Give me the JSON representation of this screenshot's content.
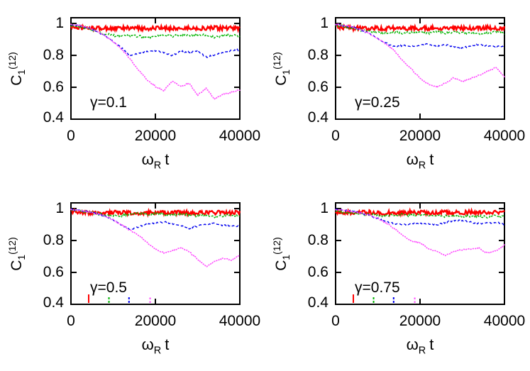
{
  "figure": {
    "background": "#ffffff",
    "text_color": "#000000",
    "grid": "2x2 panels"
  },
  "chart_data": [
    {
      "type": "line",
      "panel": "top-left",
      "gamma_label": "γ=0.1",
      "xlabel": "ω_R t",
      "ylabel": "C_1^(12)",
      "xlabel_parts": {
        "base": "ω",
        "sub": "R",
        "rest": "t"
      },
      "ylabel_parts": {
        "base": "C",
        "sub": "1",
        "sup": "(12)"
      },
      "xlim": [
        0,
        40000
      ],
      "ylim": [
        0.4,
        1.036
      ],
      "x_ticks": [
        0,
        20000,
        40000
      ],
      "y_ticks": [
        0.4,
        0.6,
        0.8,
        1
      ],
      "x_tick_labels": [
        "0",
        "20000",
        "40000"
      ],
      "y_tick_labels": [
        "1",
        "0.8",
        "0.6",
        "0.4"
      ],
      "grid": false,
      "legend": "none",
      "x_keypoints": [
        0,
        2000,
        4000,
        6000,
        8000,
        10000,
        12000,
        14000,
        16000,
        18000,
        20000,
        22000,
        24000,
        26000,
        28000,
        30000,
        32000,
        34000,
        36000,
        38000,
        40000
      ],
      "series": [
        {
          "name": "red-solid",
          "color": "#ff0000",
          "dash": "solid",
          "width": 2.4,
          "noise": 0.013,
          "y": [
            0.98,
            0.973,
            0.971,
            0.97,
            0.97,
            0.969,
            0.97,
            0.971,
            0.97,
            0.969,
            0.97,
            0.97,
            0.971,
            0.969,
            0.97,
            0.97,
            0.969,
            0.971,
            0.97,
            0.97,
            0.97
          ]
        },
        {
          "name": "green-short-dash",
          "color": "#00b400",
          "dash": "dashed-short",
          "width": 1.4,
          "noise": 0.008,
          "y": [
            0.99,
            0.98,
            0.97,
            0.952,
            0.935,
            0.924,
            0.919,
            0.924,
            0.92,
            0.914,
            0.921,
            0.926,
            0.919,
            0.93,
            0.924,
            0.931,
            0.924,
            0.914,
            0.921,
            0.926,
            0.918
          ]
        },
        {
          "name": "blue-dash",
          "color": "#0000ee",
          "dash": "dashed",
          "width": 1.4,
          "noise": 0.005,
          "y": [
            0.995,
            0.986,
            0.975,
            0.954,
            0.924,
            0.886,
            0.846,
            0.796,
            0.812,
            0.826,
            0.83,
            0.818,
            0.8,
            0.826,
            0.819,
            0.831,
            0.79,
            0.801,
            0.82,
            0.831,
            0.835
          ]
        },
        {
          "name": "magenta-dotted",
          "color": "#ff50ff",
          "dash": "dotted",
          "width": 1.7,
          "noise": 0.004,
          "y": [
            0.995,
            0.986,
            0.975,
            0.954,
            0.924,
            0.886,
            0.84,
            0.778,
            0.708,
            0.646,
            0.605,
            0.578,
            0.64,
            0.605,
            0.625,
            0.548,
            0.595,
            0.527,
            0.556,
            0.568,
            0.585
          ]
        }
      ],
      "event_ticks": []
    },
    {
      "type": "line",
      "panel": "top-right",
      "gamma_label": "γ=0.25",
      "xlabel": "ω_R t",
      "ylabel": "C_1^(12)",
      "xlabel_parts": {
        "base": "ω",
        "sub": "R",
        "rest": "t"
      },
      "ylabel_parts": {
        "base": "C",
        "sub": "1",
        "sup": "(12)"
      },
      "xlim": [
        0,
        40000
      ],
      "ylim": [
        0.4,
        1.036
      ],
      "x_ticks": [
        0,
        20000,
        40000
      ],
      "y_ticks": [
        0.4,
        0.6,
        0.8,
        1
      ],
      "x_tick_labels": [
        "0",
        "20000",
        "40000"
      ],
      "y_tick_labels": [
        "1",
        "0.8",
        "0.6",
        "0.4"
      ],
      "grid": false,
      "legend": "none",
      "x_keypoints": [
        0,
        2000,
        4000,
        6000,
        8000,
        10000,
        12000,
        14000,
        16000,
        18000,
        20000,
        22000,
        24000,
        26000,
        28000,
        30000,
        32000,
        34000,
        36000,
        38000,
        40000
      ],
      "series": [
        {
          "name": "red-solid",
          "color": "#ff0000",
          "dash": "solid",
          "width": 2.4,
          "noise": 0.013,
          "y": [
            0.982,
            0.974,
            0.971,
            0.97,
            0.97,
            0.97,
            0.969,
            0.971,
            0.97,
            0.97,
            0.969,
            0.97,
            0.971,
            0.97,
            0.969,
            0.97,
            0.97,
            0.971,
            0.974,
            0.97,
            0.97
          ]
        },
        {
          "name": "green-short-dash",
          "color": "#00b400",
          "dash": "dashed-short",
          "width": 1.4,
          "noise": 0.008,
          "y": [
            0.99,
            0.981,
            0.974,
            0.96,
            0.95,
            0.944,
            0.94,
            0.946,
            0.94,
            0.946,
            0.944,
            0.939,
            0.946,
            0.94,
            0.945,
            0.939,
            0.944,
            0.934,
            0.941,
            0.946,
            0.938
          ]
        },
        {
          "name": "blue-dash",
          "color": "#0000ee",
          "dash": "dashed",
          "width": 1.4,
          "noise": 0.005,
          "y": [
            0.995,
            0.986,
            0.976,
            0.96,
            0.936,
            0.906,
            0.876,
            0.856,
            0.861,
            0.856,
            0.866,
            0.871,
            0.856,
            0.866,
            0.856,
            0.846,
            0.861,
            0.866,
            0.861,
            0.856,
            0.854
          ]
        },
        {
          "name": "magenta-dotted",
          "color": "#ff50ff",
          "dash": "dotted",
          "width": 1.7,
          "noise": 0.004,
          "y": [
            0.995,
            0.986,
            0.976,
            0.96,
            0.936,
            0.906,
            0.87,
            0.828,
            0.764,
            0.714,
            0.655,
            0.62,
            0.6,
            0.626,
            0.66,
            0.634,
            0.656,
            0.676,
            0.7,
            0.726,
            0.664
          ]
        }
      ],
      "event_ticks": []
    },
    {
      "type": "line",
      "panel": "bottom-left",
      "gamma_label": "γ=0.5",
      "xlabel": "ω_R t",
      "ylabel": "C_1^(12)",
      "xlabel_parts": {
        "base": "ω",
        "sub": "R",
        "rest": "t"
      },
      "ylabel_parts": {
        "base": "C",
        "sub": "1",
        "sup": "(12)"
      },
      "xlim": [
        0,
        40000
      ],
      "ylim": [
        0.4,
        1.036
      ],
      "x_ticks": [
        0,
        20000,
        40000
      ],
      "y_ticks": [
        0.4,
        0.6,
        0.8,
        1
      ],
      "x_tick_labels": [
        "0",
        "20000",
        "40000"
      ],
      "y_tick_labels": [
        "1",
        "0.8",
        "0.6",
        "0.4"
      ],
      "grid": false,
      "legend": "none",
      "x_keypoints": [
        0,
        2000,
        4000,
        6000,
        8000,
        10000,
        12000,
        14000,
        16000,
        18000,
        20000,
        22000,
        24000,
        26000,
        28000,
        30000,
        32000,
        34000,
        36000,
        38000,
        40000
      ],
      "series": [
        {
          "name": "red-solid",
          "color": "#ff0000",
          "dash": "solid",
          "width": 2.4,
          "noise": 0.013,
          "y": [
            0.983,
            0.977,
            0.975,
            0.975,
            0.974,
            0.975,
            0.976,
            0.975,
            0.974,
            0.975,
            0.975,
            0.976,
            0.974,
            0.975,
            0.975,
            0.974,
            0.976,
            0.975,
            0.975,
            0.974,
            0.975
          ]
        },
        {
          "name": "green-short-dash",
          "color": "#00b400",
          "dash": "dashed-short",
          "width": 1.4,
          "noise": 0.008,
          "y": [
            0.99,
            0.984,
            0.977,
            0.969,
            0.961,
            0.955,
            0.956,
            0.966,
            0.97,
            0.964,
            0.97,
            0.965,
            0.96,
            0.966,
            0.96,
            0.955,
            0.961,
            0.95,
            0.956,
            0.961,
            0.956
          ]
        },
        {
          "name": "blue-dash",
          "color": "#0000ee",
          "dash": "dashed",
          "width": 1.4,
          "noise": 0.005,
          "y": [
            0.995,
            0.988,
            0.98,
            0.97,
            0.954,
            0.929,
            0.899,
            0.868,
            0.886,
            0.901,
            0.911,
            0.916,
            0.906,
            0.896,
            0.876,
            0.891,
            0.901,
            0.906,
            0.896,
            0.889,
            0.89
          ]
        },
        {
          "name": "magenta-dotted",
          "color": "#ff50ff",
          "dash": "dotted",
          "width": 1.7,
          "noise": 0.004,
          "y": [
            0.995,
            0.988,
            0.98,
            0.97,
            0.954,
            0.929,
            0.899,
            0.864,
            0.833,
            0.789,
            0.744,
            0.724,
            0.736,
            0.756,
            0.729,
            0.684,
            0.635,
            0.668,
            0.688,
            0.677,
            0.71
          ]
        }
      ],
      "event_ticks": [
        {
          "x": 4200,
          "len": 12,
          "color": "#ff0000",
          "dash": "solid"
        },
        {
          "x": 9000,
          "len": 10,
          "color": "#00b400",
          "dash": "dashed-short"
        },
        {
          "x": 13750,
          "len": 8,
          "color": "#0000ee",
          "dash": "dashed-short"
        },
        {
          "x": 18750,
          "len": 10,
          "color": "#ff50ff",
          "dash": "dotted-tick"
        }
      ]
    },
    {
      "type": "line",
      "panel": "bottom-right",
      "gamma_label": "γ=0.75",
      "xlabel": "ω_R t",
      "ylabel": "C_1^(12)",
      "xlabel_parts": {
        "base": "ω",
        "sub": "R",
        "rest": "t"
      },
      "ylabel_parts": {
        "base": "C",
        "sub": "1",
        "sup": "(12)"
      },
      "xlim": [
        0,
        40000
      ],
      "ylim": [
        0.4,
        1.036
      ],
      "x_ticks": [
        0,
        20000,
        40000
      ],
      "y_ticks": [
        0.4,
        0.6,
        0.8,
        1
      ],
      "x_tick_labels": [
        "0",
        "20000",
        "40000"
      ],
      "y_tick_labels": [
        "1",
        "0.8",
        "0.6",
        "0.4"
      ],
      "grid": false,
      "legend": "none",
      "x_keypoints": [
        0,
        2000,
        4000,
        6000,
        8000,
        10000,
        12000,
        14000,
        16000,
        18000,
        20000,
        22000,
        24000,
        26000,
        28000,
        30000,
        32000,
        34000,
        36000,
        38000,
        40000
      ],
      "series": [
        {
          "name": "red-solid",
          "color": "#ff0000",
          "dash": "solid",
          "width": 2.4,
          "noise": 0.013,
          "y": [
            0.983,
            0.977,
            0.975,
            0.975,
            0.977,
            0.975,
            0.974,
            0.975,
            0.976,
            0.977,
            0.975,
            0.974,
            0.977,
            0.975,
            0.974,
            0.975,
            0.977,
            0.975,
            0.974,
            0.975,
            0.979
          ]
        },
        {
          "name": "green-short-dash",
          "color": "#00b400",
          "dash": "dashed-short",
          "width": 1.4,
          "noise": 0.008,
          "y": [
            0.985,
            0.975,
            0.97,
            0.967,
            0.962,
            0.958,
            0.955,
            0.96,
            0.962,
            0.957,
            0.962,
            0.955,
            0.96,
            0.952,
            0.958,
            0.95,
            0.955,
            0.952,
            0.948,
            0.955,
            0.95
          ]
        },
        {
          "name": "blue-dash",
          "color": "#0000ee",
          "dash": "dashed",
          "width": 1.4,
          "noise": 0.005,
          "y": [
            0.995,
            0.99,
            0.982,
            0.972,
            0.958,
            0.938,
            0.916,
            0.905,
            0.9,
            0.905,
            0.91,
            0.905,
            0.896,
            0.914,
            0.924,
            0.924,
            0.915,
            0.905,
            0.91,
            0.915,
            0.9
          ]
        },
        {
          "name": "magenta-dotted",
          "color": "#ff50ff",
          "dash": "dotted",
          "width": 1.7,
          "noise": 0.004,
          "y": [
            0.995,
            0.99,
            0.982,
            0.972,
            0.958,
            0.938,
            0.91,
            0.874,
            0.83,
            0.796,
            0.786,
            0.746,
            0.731,
            0.706,
            0.731,
            0.741,
            0.746,
            0.751,
            0.721,
            0.736,
            0.772
          ]
        }
      ],
      "event_ticks": [
        {
          "x": 4200,
          "len": 12,
          "color": "#ff0000",
          "dash": "solid"
        },
        {
          "x": 9000,
          "len": 10,
          "color": "#00b400",
          "dash": "dashed-short"
        },
        {
          "x": 13750,
          "len": 8,
          "color": "#0000ee",
          "dash": "dashed-short"
        },
        {
          "x": 18750,
          "len": 10,
          "color": "#ff50ff",
          "dash": "dotted-tick"
        }
      ]
    }
  ]
}
